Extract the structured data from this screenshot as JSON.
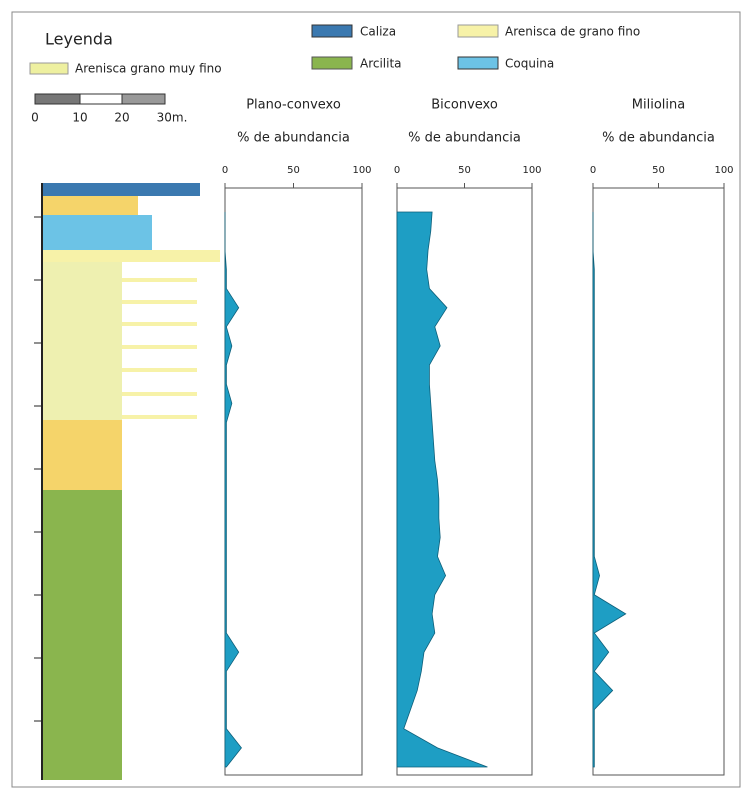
{
  "legend": {
    "title": "Leyenda",
    "items": [
      "Caliza",
      "Arenisca de grano fino",
      "Arenisca grano muy fino",
      "Arcilita",
      "Coquina"
    ],
    "scale": [
      "0",
      "10",
      "20",
      "30m."
    ]
  },
  "chart_data": [
    {
      "type": "area",
      "title": "Plano-convexo",
      "subtitle": "% de abundancia",
      "color": "#1e9ec4",
      "categories": [
        null,
        null,
        null,
        null,
        null,
        null,
        null,
        null,
        null,
        null,
        null,
        null,
        null,
        null,
        null,
        null,
        null,
        null,
        null,
        null,
        null,
        null,
        null,
        null,
        null,
        null,
        null,
        null,
        null,
        null
      ],
      "values": [
        0,
        0,
        0,
        1,
        1,
        10,
        1,
        5,
        1,
        1,
        5,
        1,
        1,
        1,
        1,
        1,
        1,
        1,
        1,
        1,
        1,
        1,
        1,
        10,
        1,
        1,
        1,
        1,
        12,
        1
      ],
      "xlim": [
        0,
        100
      ],
      "xticks": [
        0,
        50,
        100
      ]
    },
    {
      "type": "area",
      "title": "Biconvexo",
      "subtitle": "% de abundancia",
      "color": "#1e9ec4",
      "categories": [
        null,
        null,
        null,
        null,
        null,
        null,
        null,
        null,
        null,
        null,
        null,
        null,
        null,
        null,
        null,
        null,
        null,
        null,
        null,
        null,
        null,
        null,
        null,
        null,
        null,
        null,
        null,
        null,
        null,
        null
      ],
      "values": [
        26,
        25,
        23,
        22,
        24,
        37,
        28,
        32,
        24,
        24,
        25,
        26,
        27,
        28,
        30,
        31,
        31,
        32,
        30,
        36,
        28,
        26,
        28,
        20,
        18,
        15,
        10,
        5,
        30,
        67
      ],
      "xlim": [
        0,
        100
      ],
      "xticks": [
        0,
        50,
        100
      ]
    },
    {
      "type": "area",
      "title": "Miliolina",
      "subtitle": "% de abundancia",
      "color": "#1e9ec4",
      "categories": [
        null,
        null,
        null,
        null,
        null,
        null,
        null,
        null,
        null,
        null,
        null,
        null,
        null,
        null,
        null,
        null,
        null,
        null,
        null,
        null,
        null,
        null,
        null,
        null,
        null,
        null,
        null,
        null,
        null,
        null
      ],
      "values": [
        0,
        0,
        0,
        1,
        1,
        1,
        1,
        1,
        1,
        1,
        1,
        1,
        1,
        1,
        1,
        1,
        1,
        1,
        1,
        5,
        1,
        25,
        1,
        12,
        1,
        15,
        1,
        1,
        1,
        1
      ],
      "xlim": [
        0,
        100
      ],
      "xticks": [
        0,
        50,
        100
      ]
    }
  ]
}
